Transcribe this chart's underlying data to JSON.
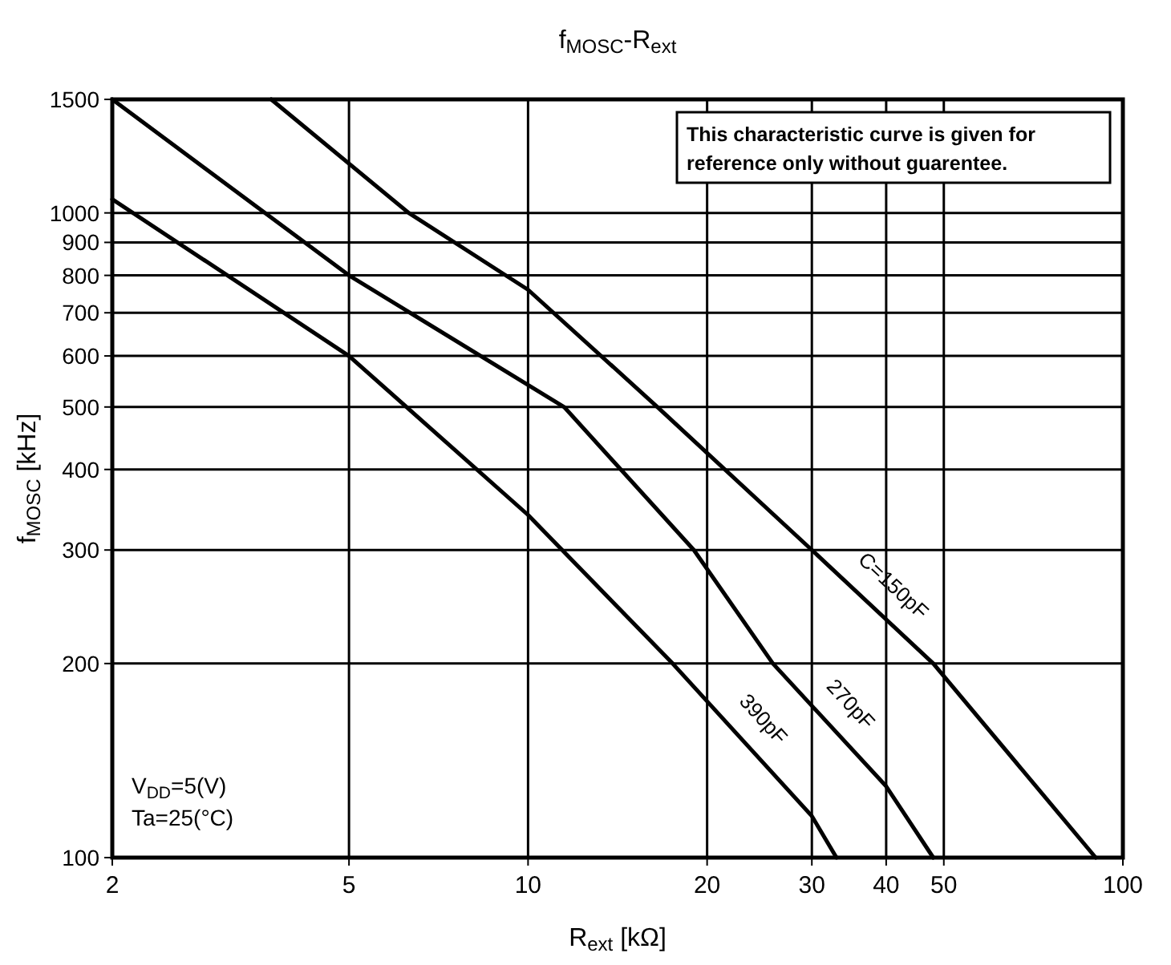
{
  "chart_data": {
    "type": "line",
    "title": "f$_{MOSC}$-R$_{ext}$",
    "xlabel": "R$_{ext}$ [kΩ]",
    "ylabel": "f$_{MOSC}$ [kHz]",
    "log": "xy",
    "grid": true,
    "legend": false,
    "marker": "none",
    "line_style": "solid",
    "xlim": [
      2,
      100
    ],
    "ylim": [
      100,
      1500
    ],
    "xticks": [
      2,
      5,
      10,
      20,
      30,
      40,
      50,
      100
    ],
    "yticks": [
      100,
      200,
      300,
      400,
      500,
      600,
      700,
      800,
      900,
      1000,
      1500
    ],
    "series": [
      {
        "name": "390pF",
        "color": "#000000",
        "x": [
          2,
          5,
          10,
          17.5,
          30,
          33
        ],
        "values": [
          1050,
          600,
          340,
          200,
          116,
          100
        ]
      },
      {
        "name": "270pF",
        "color": "#000000",
        "x": [
          2,
          5,
          11.5,
          19,
          25.8,
          40,
          48
        ],
        "values": [
          1500,
          800,
          500,
          300,
          200,
          129,
          100
        ]
      },
      {
        "name": "C=150pF",
        "color": "#000000",
        "x": [
          3.7,
          6.3,
          10,
          16.5,
          30,
          48,
          90
        ],
        "values": [
          1500,
          1000,
          760,
          500,
          300,
          200,
          100
        ]
      }
    ],
    "annotations": [
      "This characteristic curve is given for\nreference only without guarentee.",
      "V$_{DD}$=5(V)\nTa=25(°C)"
    ]
  }
}
